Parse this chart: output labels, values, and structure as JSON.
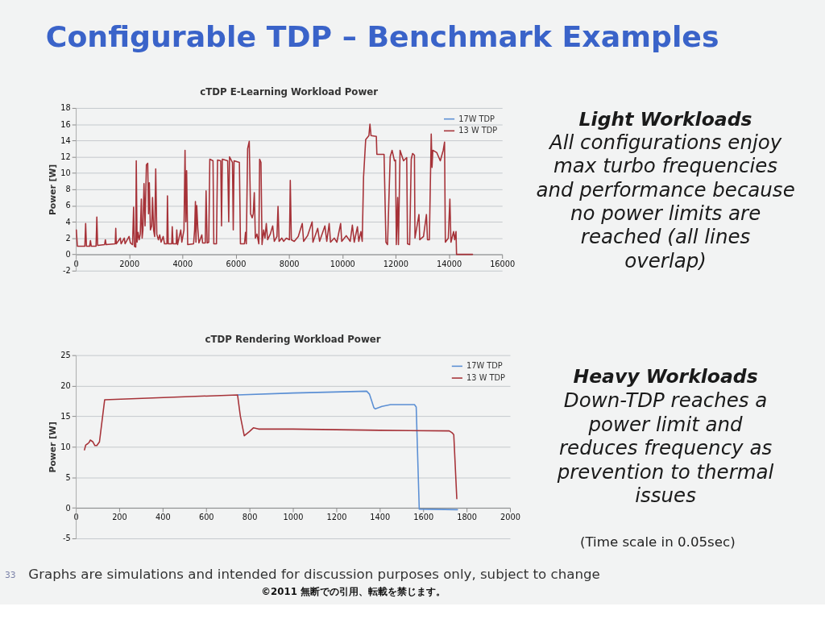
{
  "chart_data": [
    {
      "type": "other",
      "title": "Configurable TDP – Benchmark Examples",
      "annotations": [
        "Light Workloads",
        "All configurations enjoy max turbo frequencies and performance because no power limits are reached (all lines overlap)",
        "Heavy Workloads",
        "Down-TDP reaches a power limit and reduces frequency as prevention to thermal issues",
        "(Time scale in 0.05sec)",
        "Graphs are simulations and intended for discussion purposes only, subject to change",
        "©2011 無断での引用、転載を禁じます。",
        "33"
      ]
    },
    {
      "type": "line",
      "title": "cTDP E-Learning Workload Power",
      "ylabel": "Power [W]",
      "xlim": [
        0,
        16000
      ],
      "xticks": [
        0,
        2000,
        4000,
        6000,
        8000,
        10000,
        12000,
        14000,
        16000
      ],
      "ylim": [
        -2,
        18
      ],
      "yticks": [
        -2,
        0,
        2,
        4,
        6,
        8,
        10,
        12,
        14,
        16,
        18
      ],
      "grid": "y",
      "legend": "top right",
      "series": [
        {
          "name": "17W TDP",
          "color": "#5b8fd4"
        },
        {
          "name": "13 W TDP",
          "color": "#a63238",
          "x": [
            20,
            60,
            340,
            370,
            400,
            520,
            550,
            580,
            760,
            790,
            820,
            1080,
            1110,
            1140,
            1480,
            1500,
            1520,
            1670,
            1700,
            1820,
            1850,
            2000,
            2050,
            2130,
            2170,
            2200,
            2250,
            2270,
            2300,
            2340,
            2380,
            2420,
            2460,
            2490,
            2520,
            2560,
            2600,
            2650,
            2700,
            2730,
            2760,
            2800,
            2850,
            2880,
            2920,
            2960,
            3000,
            3040,
            3100,
            3150,
            3200,
            3280,
            3330,
            3420,
            3440,
            3470,
            3600,
            3620,
            3650,
            3770,
            3790,
            3820,
            3940,
            3980,
            4060,
            4100,
            4130,
            4160,
            4200,
            4420,
            4460,
            4490,
            4510,
            4540,
            4580,
            4620,
            4730,
            4760,
            4860,
            4890,
            4930,
            4990,
            5030,
            5150,
            5180,
            5280,
            5320,
            5440,
            5470,
            5500,
            5700,
            5740,
            5770,
            5880,
            5910,
            5940,
            6140,
            6180,
            6330,
            6370,
            6400,
            6450,
            6510,
            6560,
            6620,
            6660,
            6700,
            6740,
            6800,
            6870,
            6900,
            6950,
            6990,
            7050,
            7100,
            7150,
            7200,
            7300,
            7390,
            7450,
            7550,
            7590,
            7630,
            7730,
            7800,
            7900,
            8020,
            8050,
            8090,
            8200,
            8350,
            8500,
            8550,
            8700,
            8870,
            8900,
            9080,
            9150,
            9350,
            9420,
            9510,
            9560,
            9700,
            9800,
            9940,
            9980,
            10150,
            10300,
            10380,
            10450,
            10570,
            10620,
            10700,
            10750,
            10800,
            10880,
            11000,
            11040,
            11080,
            11280,
            11300,
            11570,
            11640,
            11700,
            11800,
            11870,
            11960,
            12000,
            12030,
            12080,
            12110,
            12170,
            12300,
            12420,
            12450,
            12530,
            12590,
            12640,
            12710,
            12730,
            12880,
            12910,
            13050,
            13160,
            13200,
            13270,
            13340,
            13370,
            13400,
            13550,
            13680,
            13790,
            13840,
            13870,
            13980,
            14040,
            14080,
            14180,
            14220,
            14270,
            14290,
            14890
          ],
          "values": [
            3.0,
            1.0,
            1.0,
            3.8,
            1.0,
            1.0,
            1.7,
            1.0,
            1.0,
            4.6,
            1.1,
            1.2,
            1.8,
            1.2,
            1.3,
            3.2,
            1.3,
            2.0,
            1.3,
            2.0,
            1.3,
            2.2,
            1.4,
            1.2,
            5.8,
            1.0,
            0.9,
            11.5,
            1.5,
            2.7,
            1.8,
            2.5,
            6.8,
            2.0,
            3.0,
            8.7,
            3.5,
            11.0,
            11.2,
            5.0,
            8.8,
            3.0,
            3.5,
            7.0,
            3.0,
            2.2,
            10.5,
            2.5,
            1.8,
            2.4,
            1.5,
            2.2,
            1.3,
            1.3,
            7.2,
            1.3,
            1.3,
            3.4,
            1.3,
            1.3,
            3.0,
            1.2,
            3.0,
            1.5,
            3.0,
            12.8,
            4.0,
            10.3,
            1.2,
            1.3,
            3.0,
            6.5,
            1.5,
            6.0,
            3.2,
            1.4,
            2.4,
            1.4,
            1.4,
            7.8,
            1.4,
            1.5,
            11.7,
            11.5,
            1.3,
            1.3,
            11.6,
            11.5,
            3.5,
            11.7,
            11.5,
            4.0,
            12.0,
            11.3,
            3.0,
            11.5,
            11.3,
            1.3,
            1.3,
            2.7,
            1.3,
            13.0,
            13.9,
            5.0,
            4.5,
            5.0,
            7.6,
            2.0,
            2.5,
            1.3,
            11.7,
            11.3,
            1.2,
            3.0,
            2.0,
            3.8,
            1.8,
            2.5,
            3.5,
            1.6,
            2.2,
            5.9,
            1.6,
            2.0,
            1.6,
            2.0,
            1.8,
            9.1,
            1.8,
            1.6,
            2.2,
            3.8,
            1.6,
            2.3,
            4.0,
            1.5,
            3.2,
            1.6,
            3.5,
            1.6,
            3.8,
            1.5,
            2.0,
            1.5,
            3.8,
            1.6,
            2.3,
            1.6,
            3.6,
            1.5,
            3.4,
            1.6,
            2.8,
            1.6,
            9.5,
            14.1,
            14.6,
            16.0,
            14.6,
            14.5,
            12.3,
            12.3,
            1.5,
            1.2,
            12.0,
            12.8,
            11.5,
            11.6,
            1.2,
            7.0,
            1.2,
            12.8,
            11.5,
            11.9,
            1.3,
            1.2,
            11.7,
            12.4,
            12.2,
            2.0,
            4.9,
            1.8,
            2.2,
            4.9,
            1.8,
            1.8,
            14.8,
            10.7,
            12.8,
            12.5,
            11.5,
            12.8,
            13.8,
            1.5,
            2.0,
            6.8,
            1.5,
            2.8,
            1.8,
            2.8,
            0,
            0
          ]
        }
      ]
    },
    {
      "type": "line",
      "title": "cTDP Rendering Workload Power",
      "ylabel": "Power [W]",
      "xlim": [
        0,
        2000
      ],
      "xticks": [
        0,
        200,
        400,
        600,
        800,
        1000,
        1200,
        1400,
        1600,
        1800,
        2000
      ],
      "ylim": [
        -5,
        25
      ],
      "yticks": [
        -5,
        0,
        5,
        10,
        15,
        20,
        25
      ],
      "grid": "y",
      "legend": "top right",
      "series": [
        {
          "name": "17W TDP",
          "color": "#5b8fd4",
          "x": [
            745,
            1000,
            1340,
            1353,
            1373,
            1380,
            1410,
            1450,
            1560,
            1568,
            1582,
            1758
          ],
          "values": [
            18.5,
            18.8,
            19.1,
            18.6,
            16.4,
            16.2,
            16.6,
            16.9,
            16.9,
            16.5,
            -0.2,
            -0.3
          ]
        },
        {
          "name": "13 W TDP",
          "color": "#a63238",
          "x": [
            40,
            46,
            55,
            61,
            67,
            79,
            88,
            97,
            109,
            133,
            745,
            758,
            776,
            800,
            818,
            842,
            1000,
            1400,
            1720,
            1733,
            1741,
            1755
          ],
          "values": [
            9.5,
            10.3,
            10.5,
            10.7,
            11.1,
            10.8,
            10.2,
            10.2,
            10.8,
            17.7,
            18.5,
            15.0,
            11.8,
            12.5,
            13.1,
            12.9,
            12.9,
            12.7,
            12.6,
            12.3,
            12.0,
            1.5
          ]
        }
      ]
    }
  ]
}
